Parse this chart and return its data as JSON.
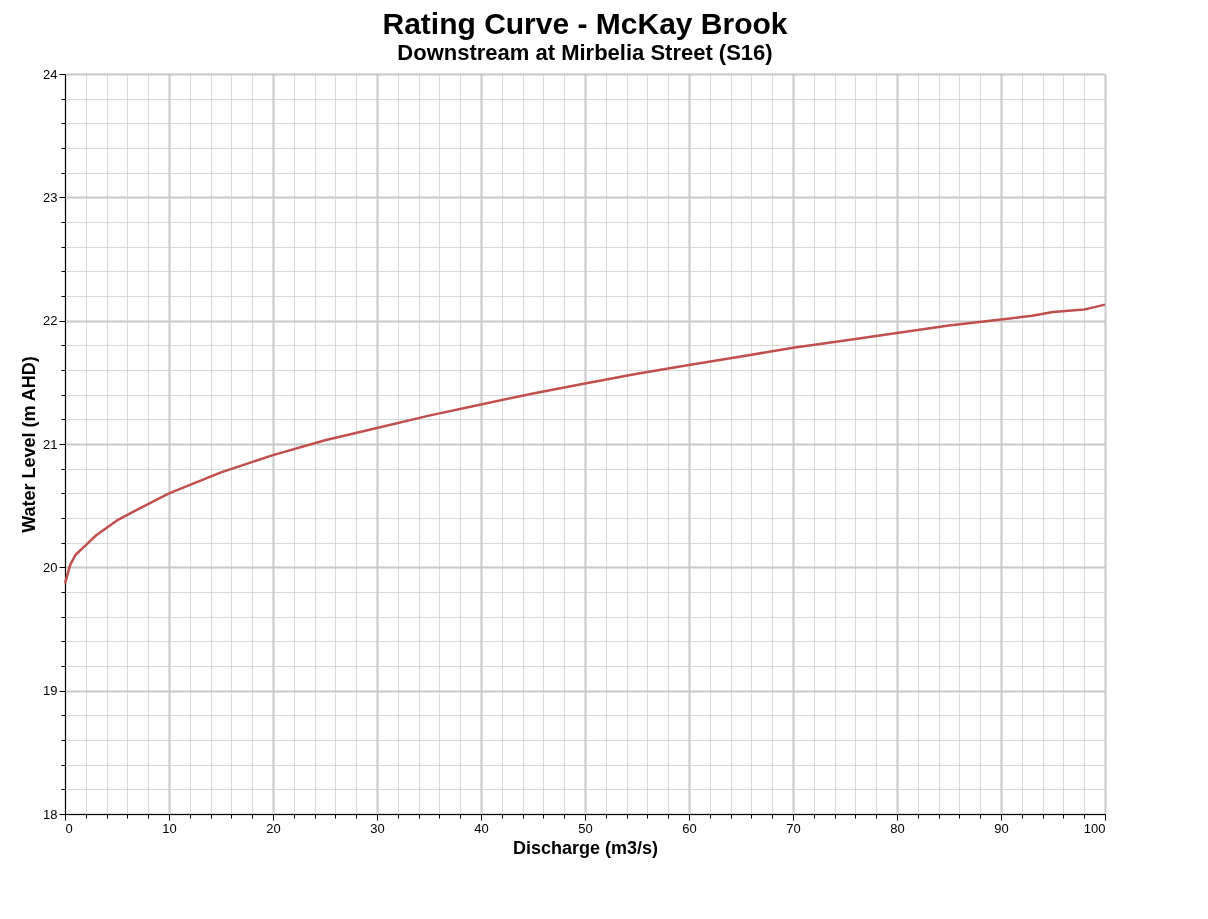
{
  "chart_data": {
    "type": "line",
    "title": "Rating Curve - McKay Brook",
    "subtitle": "Downstream at Mirbelia Street (S16)",
    "xlabel": "Discharge (m3/s)",
    "ylabel": "Water Level (m AHD)",
    "x": [
      0,
      0.5,
      1,
      2,
      3,
      5,
      7,
      10,
      15,
      20,
      25,
      30,
      35,
      40,
      45,
      50,
      55,
      60,
      65,
      70,
      75,
      80,
      85,
      90,
      92,
      93,
      95,
      98,
      99,
      100
    ],
    "series": [
      {
        "color": "#c0504d",
        "values": [
          19.87,
          20.02,
          20.1,
          20.18,
          20.26,
          20.38,
          20.47,
          20.6,
          20.77,
          20.91,
          21.03,
          21.13,
          21.23,
          21.32,
          21.41,
          21.49,
          21.57,
          21.64,
          21.71,
          21.78,
          21.84,
          21.9,
          21.96,
          22.01,
          22.03,
          22.04,
          22.07,
          22.09,
          22.11,
          22.13
        ]
      }
    ],
    "xlim": [
      0,
      100
    ],
    "ylim": [
      18,
      24
    ],
    "xticks": [
      0,
      {
        "value": 2,
        "label": null
      },
      {
        "value": 4,
        "label": null
      },
      {
        "value": 6,
        "label": null
      },
      {
        "value": 8,
        "label": null
      },
      10,
      {
        "value": 12,
        "label": null
      },
      {
        "value": 14,
        "label": null
      },
      {
        "value": 16,
        "label": null
      },
      {
        "value": 18,
        "label": null
      },
      20,
      {
        "value": 22,
        "label": null
      },
      {
        "value": 24,
        "label": null
      },
      {
        "value": 26,
        "label": null
      },
      {
        "value": 28,
        "label": null
      },
      30,
      {
        "value": 32,
        "label": null
      },
      {
        "value": 34,
        "label": null
      },
      {
        "value": 36,
        "label": null
      },
      {
        "value": 38,
        "label": null
      },
      40,
      {
        "value": 42,
        "label": null
      },
      {
        "value": 44,
        "label": null
      },
      {
        "value": 46,
        "label": null
      },
      {
        "value": 48,
        "label": null
      },
      50,
      {
        "value": 52,
        "label": null
      },
      {
        "value": 54,
        "label": null
      },
      {
        "value": 56,
        "label": null
      },
      {
        "value": 58,
        "label": null
      },
      60,
      {
        "value": 62,
        "label": null
      },
      {
        "value": 64,
        "label": null
      },
      {
        "value": 66,
        "label": null
      },
      {
        "value": 68,
        "label": null
      },
      70,
      {
        "value": 72,
        "label": null
      },
      {
        "value": 74,
        "label": null
      },
      {
        "value": 76,
        "label": null
      },
      {
        "value": 78,
        "label": null
      },
      80,
      {
        "value": 82,
        "label": null
      },
      {
        "value": 84,
        "label": null
      },
      {
        "value": 86,
        "label": null
      },
      {
        "value": 88,
        "label": null
      },
      90,
      {
        "value": 92,
        "label": null
      },
      {
        "value": 94,
        "label": null
      },
      {
        "value": 96,
        "label": null
      },
      {
        "value": 98,
        "label": null
      },
      100
    ],
    "yticks": [
      18,
      {
        "value": 18.2,
        "label": null
      },
      {
        "value": 18.4,
        "label": null
      },
      {
        "value": 18.6,
        "label": null
      },
      {
        "value": 18.8,
        "label": null
      },
      19,
      {
        "value": 19.2,
        "label": null
      },
      {
        "value": 19.4,
        "label": null
      },
      {
        "value": 19.6,
        "label": null
      },
      {
        "value": 19.8,
        "label": null
      },
      20,
      {
        "value": 20.2,
        "label": null
      },
      {
        "value": 20.4,
        "label": null
      },
      {
        "value": 20.6,
        "label": null
      },
      {
        "value": 20.8,
        "label": null
      },
      21,
      {
        "value": 21.2,
        "label": null
      },
      {
        "value": 21.4,
        "label": null
      },
      {
        "value": 21.6,
        "label": null
      },
      {
        "value": 21.8,
        "label": null
      },
      22,
      {
        "value": 22.2,
        "label": null
      },
      {
        "value": 22.4,
        "label": null
      },
      {
        "value": 22.6,
        "label": null
      },
      {
        "value": 22.8,
        "label": null
      },
      23,
      {
        "value": 23.2,
        "label": null
      },
      {
        "value": 23.4,
        "label": null
      },
      {
        "value": 23.6,
        "label": null
      },
      {
        "value": 23.8,
        "label": null
      },
      24
    ],
    "grid": true,
    "marker": "none",
    "line_style": "solid"
  }
}
